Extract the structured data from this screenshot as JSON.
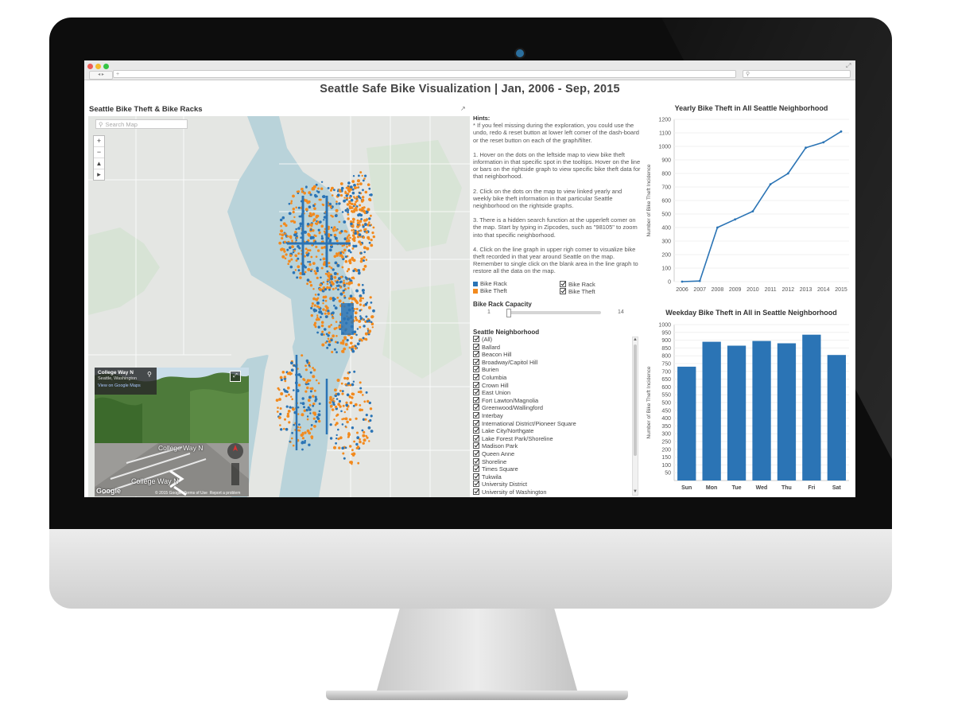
{
  "browser": {
    "url": "",
    "search_placeholder": "",
    "new_tab": "+",
    "nav": "◂ ▸"
  },
  "dashboard": {
    "title": "Seattle Safe Bike Visualization |  Jan, 2006 - Sep, 2015"
  },
  "map_panel": {
    "title": "Seattle Bike Theft & Bike Racks",
    "search_placeholder": "Search Map",
    "zoom_in": "+",
    "zoom_out": "−",
    "pin": "📌",
    "play": "▸",
    "icons": [
      "search-icon",
      "zoom-in-icon",
      "zoom-out-icon",
      "pin-icon",
      "play-icon",
      "expand-icon"
    ]
  },
  "street_view": {
    "street": "College Way N",
    "city": "Seattle, Washington",
    "link": "View on Google Maps",
    "road_label_1": "College Way N",
    "road_label_2": "College Way N",
    "logo": "Google",
    "copyright": "© 2015 Google",
    "terms": "Terms of Use",
    "report": "Report a problem"
  },
  "hints": {
    "heading": "Hints:",
    "items": [
      "* If you feel missing during the exploration, you could use the undo, redo & reset button at lower left comer of the dash-board or the reset button on each of the graph/filter.",
      "1. Hover on the dots on the leftside map to view bike theft information in that specific spot in the tooltips. Hover on the line or bars on the rightside graph to view specific bike theft data for that neighborhood.",
      "2. Click on the dots on the map to view linked yearly and weekly bike theft information in that particular Seattle neighborhood on the rightside graphs.",
      "3. There is a hidden search function at the upperleft comer on the map. Start by typing in Zipcodes, such as \"98105\" to zoom into that specific neighborhood.",
      "4. Click on the line graph in upper righ comer to visualize bike theft recorded in that year around Seattle on the map. Remember to single click on the blank area in the line graph to restore all the data on the map."
    ]
  },
  "legend": {
    "rack_label": "Bike Rack",
    "theft_label": "Bike Theft",
    "rack_color": "#2b74b5",
    "theft_color": "#f28a1e",
    "filter_rack": "Bike Rack",
    "filter_theft": "Bike Theft"
  },
  "capacity": {
    "title": "Bike Rack Capacity",
    "min": "1",
    "max": "14"
  },
  "neighborhood": {
    "title": "Seattle Neighborhood",
    "items": [
      "(All)",
      "Ballard",
      "Beacon Hill",
      "Broadway/Capitol Hill",
      "Burien",
      "Columbia",
      "Crown Hill",
      "East Union",
      "Fort Lawton/Magnolia",
      "Greenwood/Wallingford",
      "Interbay",
      "International District/Pioneer Square",
      "Lake City/Northgate",
      "Lake Forest Park/Shoreline",
      "Madison Park",
      "Queen Anne",
      "Shoreline",
      "Times Square",
      "Tukwila",
      "University District",
      "University of Washington"
    ]
  },
  "chart_data": [
    {
      "type": "line",
      "title": "Yearly Bike Theft in All Seattle Neighborhood",
      "ylabel": "Number of Bike Theft Incidence",
      "x": [
        "2006",
        "2007",
        "2008",
        "2009",
        "2010",
        "2011",
        "2012",
        "2013",
        "2014",
        "2015"
      ],
      "values": [
        0,
        5,
        400,
        460,
        520,
        720,
        800,
        990,
        1030,
        1110
      ],
      "ylim": [
        0,
        1200
      ],
      "yticks": [
        "0",
        "100",
        "200",
        "300",
        "400",
        "500",
        "600",
        "700",
        "800",
        "900",
        "1000",
        "1100",
        "1200"
      ],
      "color": "#2b74b5"
    },
    {
      "type": "bar",
      "title": "Weekday Bike Theft in All in Seattle Neighborhood",
      "ylabel": "Number of Bike Theft Incidence",
      "categories": [
        "Sun",
        "Mon",
        "Tue",
        "Wed",
        "Thu",
        "Fri",
        "Sat"
      ],
      "values": [
        730,
        890,
        865,
        895,
        880,
        935,
        805
      ],
      "ylim": [
        0,
        1000
      ],
      "yticks": [
        "50",
        "100",
        "150",
        "200",
        "250",
        "300",
        "350",
        "400",
        "450",
        "500",
        "550",
        "600",
        "650",
        "700",
        "750",
        "800",
        "850",
        "900",
        "950",
        "1000"
      ],
      "color": "#2b74b5"
    }
  ]
}
